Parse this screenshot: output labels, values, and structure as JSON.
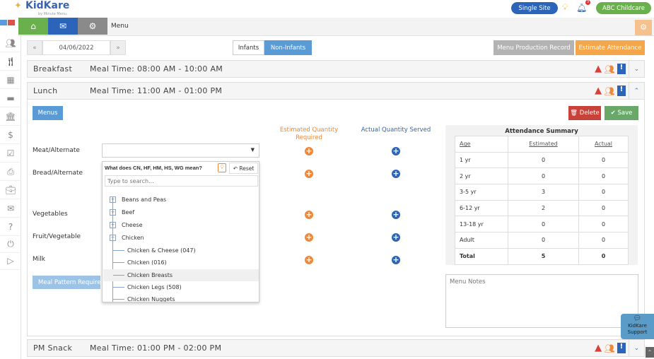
{
  "brand": {
    "logo": "KidKare",
    "tagline": "by Minute Menu"
  },
  "header": {
    "site_button": "Single Site",
    "notification_count": "3",
    "account_button": "ABC Childcare",
    "colors": {
      "blue": "#2b64b8",
      "green": "#6ab04c"
    }
  },
  "toolbar": {
    "breadcrumb": "Menu",
    "icons": [
      "home-icon",
      "envelope-icon",
      "gears-icon"
    ]
  },
  "date_nav": {
    "prev": "«",
    "date": "04/06/2022",
    "next": "»"
  },
  "tabs": {
    "infants": "Infants",
    "non_infants": "Non-Infants",
    "active": "Non-Infants"
  },
  "actions": {
    "production_record": "Menu Production Record",
    "estimate_attendance": "Estimate Attendance"
  },
  "sidebar": {
    "icons": [
      "people-icon",
      "utensils-icon",
      "calendar-icon",
      "card-icon",
      "bank-icon",
      "dollar-icon",
      "checkbox-icon",
      "pdf-icon",
      "briefcase-icon",
      "mail-icon",
      "help-icon",
      "power-icon",
      "play-icon"
    ]
  },
  "meals": [
    {
      "name": "Breakfast",
      "time": "Meal Time: 08:00 AM - 10:00 AM",
      "expanded": false
    },
    {
      "name": "Lunch",
      "time": "Meal Time: 11:00 AM - 01:00 PM",
      "expanded": true
    },
    {
      "name": "PM Snack",
      "time": "Meal Time: 01:00 PM - 02:00 PM",
      "expanded": false
    }
  ],
  "lunch": {
    "menus_button": "Menus",
    "delete_button": "Delete",
    "save_button": "Save",
    "estimated_header": "Estimated Quantity Required",
    "actual_header": "Actual Quantity Served",
    "components": [
      "Meat/Alternate",
      "Bread/Alternate",
      "Vegetables",
      "Fruit/Vegetable",
      "Milk"
    ],
    "meal_pattern_button": "Meal Pattern Requirements",
    "menu_notes_placeholder": "Menu Notes"
  },
  "dropdown": {
    "help_text": "What does CN, HF, HM, HS, WG mean?",
    "reset": "Reset",
    "search_placeholder": "Type to search...",
    "categories": [
      {
        "label": "Beans and Peas",
        "expanded": false
      },
      {
        "label": "Beef",
        "expanded": false
      },
      {
        "label": "Cheese",
        "expanded": false
      },
      {
        "label": "Chicken",
        "expanded": true
      }
    ],
    "children": [
      "Chicken & Cheese (047)",
      "Chicken (016)",
      "Chicken Breasts",
      "Chicken Legs (508)",
      "Chicken Nuggets"
    ],
    "highlighted": "Chicken Breasts"
  },
  "attendance": {
    "title": "Attendance Summary",
    "columns": [
      "Age",
      "Estimated",
      "Actual"
    ],
    "rows": [
      [
        "1 yr",
        "0",
        "0"
      ],
      [
        "2 yr",
        "0",
        "0"
      ],
      [
        "3-5 yr",
        "3",
        "0"
      ],
      [
        "6-12 yr",
        "2",
        "0"
      ],
      [
        "13-18 yr",
        "0",
        "0"
      ],
      [
        "Adult",
        "0",
        "0"
      ],
      [
        "Total",
        "5",
        "0"
      ]
    ]
  },
  "support": {
    "label1": "KidKare",
    "label2": "Support"
  }
}
